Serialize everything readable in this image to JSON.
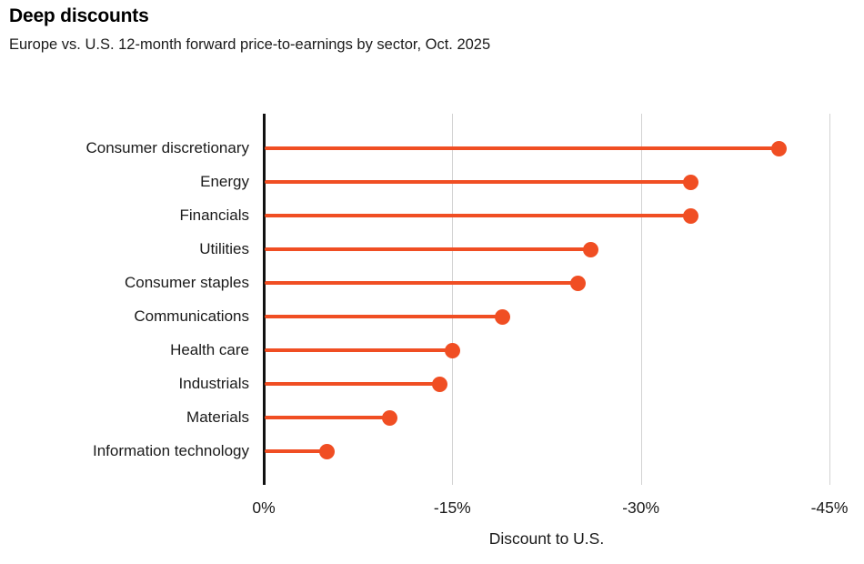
{
  "header": {
    "title": "Deep discounts",
    "subtitle": "Europe vs. U.S. 12-month forward price-to-earnings by sector, Oct. 2025"
  },
  "chart_data": {
    "type": "bar",
    "style": "horizontal-lollipop",
    "title": "Deep discounts",
    "subtitle": "Europe vs. U.S. 12-month forward price-to-earnings by sector, Oct. 2025",
    "categories": [
      "Consumer discretionary",
      "Energy",
      "Financials",
      "Utilities",
      "Consumer staples",
      "Communications",
      "Health care",
      "Industrials",
      "Materials",
      "Information technology"
    ],
    "values": [
      -41,
      -34,
      -34,
      -26,
      -25,
      -19,
      -15,
      -14,
      -10,
      -5
    ],
    "unit": "%",
    "xlabel": "Discount to U.S.",
    "ylabel": "",
    "xlim": [
      0,
      -45
    ],
    "xticks": [
      0,
      -15,
      -30,
      -45
    ],
    "xtick_labels": [
      "0%",
      "-15%",
      "-30%",
      "-45%"
    ],
    "grid": true,
    "legend": "none",
    "accent_color": "#f04e23",
    "gridline_color": "#d2d2d2",
    "axis_color": "#111111",
    "text_color": "#1a1a1a",
    "background_color": "#ffffff"
  }
}
